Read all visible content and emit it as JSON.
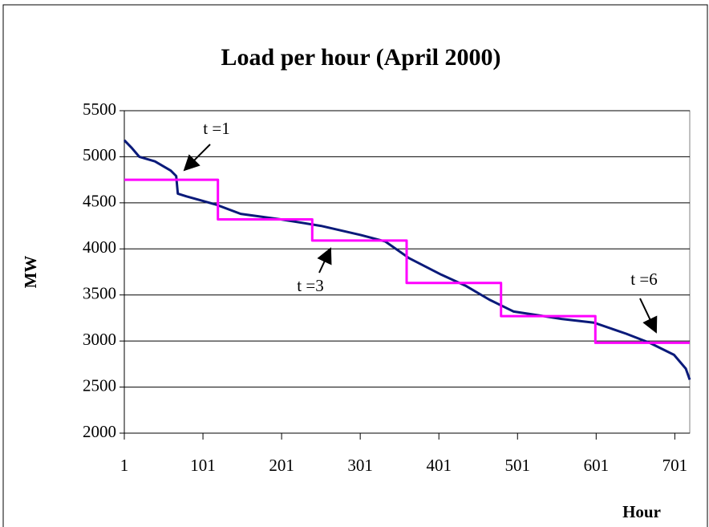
{
  "chart_data": {
    "type": "line",
    "title": "Load per hour (April 2000)",
    "x_label": "Hour",
    "y_label": "MW",
    "xlim": [
      1,
      720
    ],
    "xticks": [
      1,
      101,
      201,
      301,
      401,
      501,
      601,
      701
    ],
    "ylim": [
      2000,
      5500
    ],
    "yticks": [
      2000,
      2500,
      3000,
      3500,
      4000,
      4500,
      5000,
      5500
    ],
    "grid": true,
    "series": [
      {
        "color": "#0a1a7a",
        "x": [
          1,
          10,
          20,
          40,
          60,
          67,
          69,
          80,
          118,
          149,
          200,
          251,
          302,
          333,
          363,
          404,
          435,
          465,
          496,
          527,
          557,
          598,
          639,
          669,
          700,
          715,
          720
        ],
        "values": [
          5180,
          5100,
          5000,
          4950,
          4850,
          4790,
          4600,
          4570,
          4480,
          4380,
          4320,
          4250,
          4150,
          4080,
          3900,
          3720,
          3600,
          3450,
          3320,
          3280,
          3240,
          3200,
          3080,
          2980,
          2850,
          2700,
          2580
        ]
      },
      {
        "color": "#ff00ff",
        "x": [
          1,
          120,
          120,
          240,
          240,
          360,
          360,
          480,
          480,
          600,
          600,
          720
        ],
        "values": [
          4750,
          4750,
          4320,
          4320,
          4090,
          4090,
          3630,
          3630,
          3270,
          3270,
          2980,
          2980
        ]
      }
    ],
    "annotations": [
      {
        "text": "t =1"
      },
      {
        "text": "t =3"
      },
      {
        "text": "t =6"
      }
    ]
  }
}
